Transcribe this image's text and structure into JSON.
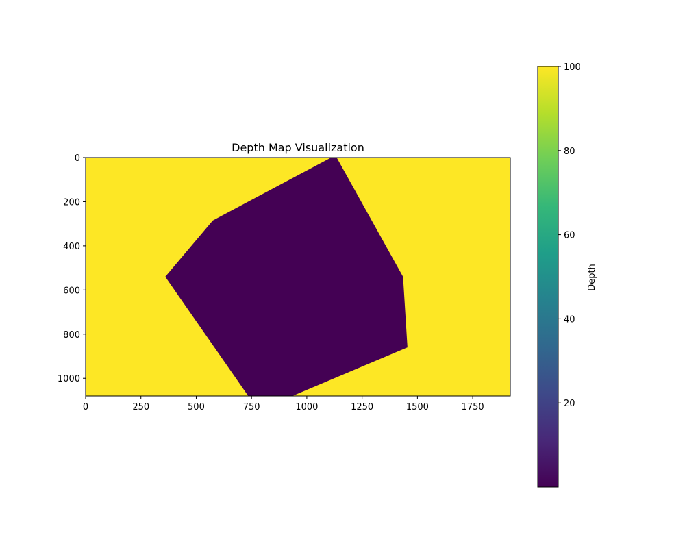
{
  "chart_data": {
    "type": "heatmap",
    "title": "Depth Map Visualization",
    "xlabel": "",
    "ylabel": "",
    "image_width": 1920,
    "image_height": 1080,
    "xlim": [
      0,
      1920
    ],
    "ylim": [
      1080,
      0
    ],
    "x_ticks": [
      0,
      250,
      500,
      750,
      1000,
      1250,
      1500,
      1750
    ],
    "y_ticks": [
      0,
      200,
      400,
      600,
      800,
      1000
    ],
    "background_value": 100,
    "region": {
      "value": 0,
      "polygon": [
        [
          1110,
          0
        ],
        [
          1135,
          0
        ],
        [
          1435,
          540
        ],
        [
          1455,
          860
        ],
        [
          935,
          1080
        ],
        [
          735,
          1080
        ],
        [
          360,
          540
        ],
        [
          575,
          285
        ]
      ]
    },
    "colorbar": {
      "label": "Depth",
      "range": [
        0,
        100
      ],
      "ticks": [
        20,
        40,
        60,
        80,
        100
      ],
      "colormap": "viridis",
      "colors": [
        "#440154",
        "#482878",
        "#3e4989",
        "#31688e",
        "#26828e",
        "#1f9e89",
        "#35b779",
        "#6ece58",
        "#b5de2b",
        "#fde725"
      ]
    }
  }
}
